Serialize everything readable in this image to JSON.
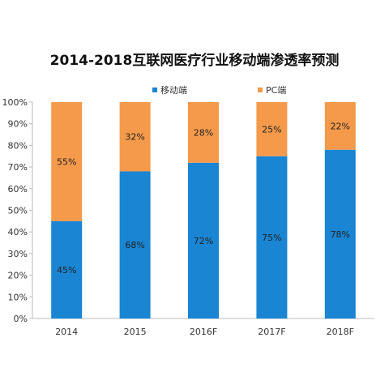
{
  "chart_data": {
    "type": "bar",
    "stacked": true,
    "title": "2014-2018互联网医疗行业移动端渗透率预测",
    "categories": [
      "2014",
      "2015",
      "2016F",
      "2017F",
      "2018F"
    ],
    "series": [
      {
        "name": "移动端",
        "color": "#1985D3",
        "values": [
          45,
          68,
          72,
          75,
          78
        ],
        "labels": [
          "45%",
          "68%",
          "72%",
          "75%",
          "78%"
        ]
      },
      {
        "name": "PC端",
        "color": "#F59A4B",
        "values": [
          55,
          32,
          28,
          25,
          22
        ],
        "labels": [
          "55%",
          "32%",
          "28%",
          "25%",
          "22%"
        ]
      }
    ],
    "yticks": [
      "0%",
      "10%",
      "20%",
      "30%",
      "40%",
      "50%",
      "60%",
      "70%",
      "80%",
      "90%",
      "100%"
    ],
    "ylim": [
      0,
      100
    ],
    "legend_position": "top",
    "grid": false
  }
}
